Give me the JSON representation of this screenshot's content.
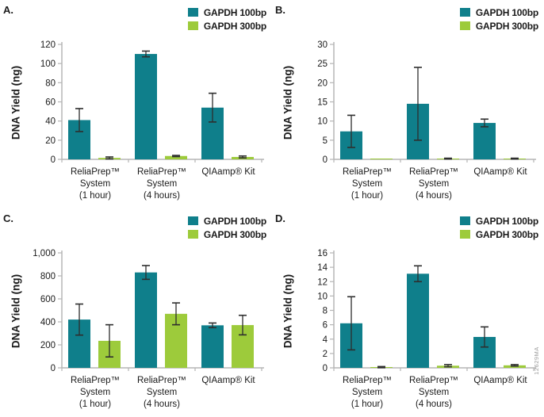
{
  "watermark": "12629MA",
  "colors": {
    "series1": "#0f7f8b",
    "series2": "#9dcb3b",
    "axis": "#b5b5b5",
    "error": "#2e2e2e",
    "text": "#1a1a1a"
  },
  "categories_lines": [
    [
      "ReliaPrep™",
      "System",
      "(1 hour)"
    ],
    [
      "ReliaPrep™",
      "System",
      "(4 hours)"
    ],
    [
      "QIAamp® Kit"
    ]
  ],
  "chart_data": [
    {
      "panel": "A.",
      "type": "bar",
      "title": "",
      "xlabel": "",
      "ylabel": "DNA Yield (ng)",
      "ylim": [
        0,
        120
      ],
      "yticks": [
        0,
        20,
        40,
        60,
        80,
        100,
        120
      ],
      "grid": false,
      "legend_position": "top-right",
      "categories": [
        "ReliaPrep™ System (1 hour)",
        "ReliaPrep™ System (4 hours)",
        "QIAamp® Kit"
      ],
      "series": [
        {
          "name": "GAPDH 100bp",
          "values": [
            41,
            110,
            54
          ],
          "errors": [
            12,
            3,
            15
          ]
        },
        {
          "name": "GAPDH 300bp",
          "values": [
            1.5,
            3.5,
            2.5
          ],
          "errors": [
            1,
            0.6,
            1
          ]
        }
      ]
    },
    {
      "panel": "B.",
      "type": "bar",
      "title": "",
      "xlabel": "",
      "ylabel": "DNA Yield (ng)",
      "ylim": [
        0,
        30
      ],
      "yticks": [
        0,
        5,
        10,
        15,
        20,
        25,
        30
      ],
      "grid": false,
      "legend_position": "top-right",
      "categories": [
        "ReliaPrep™ System (1 hour)",
        "ReliaPrep™ System (4 hours)",
        "QIAamp® Kit"
      ],
      "series": [
        {
          "name": "GAPDH 100bp",
          "values": [
            7.3,
            14.5,
            9.5
          ],
          "errors": [
            4.2,
            9.5,
            1
          ]
        },
        {
          "name": "GAPDH 300bp",
          "values": [
            0.1,
            0.2,
            0.2
          ],
          "errors": [
            0,
            0.1,
            0.1
          ]
        }
      ]
    },
    {
      "panel": "C.",
      "type": "bar",
      "title": "",
      "xlabel": "",
      "ylabel": "DNA Yield (ng)",
      "ylim": [
        0,
        1000
      ],
      "yticks": [
        0,
        200,
        400,
        600,
        800,
        1000
      ],
      "grid": false,
      "legend_position": "top-right",
      "categories": [
        "ReliaPrep™ System (1 hour)",
        "ReliaPrep™ System (4 hours)",
        "QIAamp® Kit"
      ],
      "series": [
        {
          "name": "GAPDH 100bp",
          "values": [
            420,
            830,
            370
          ],
          "errors": [
            135,
            60,
            20
          ]
        },
        {
          "name": "GAPDH 300bp",
          "values": [
            235,
            470,
            372
          ],
          "errors": [
            140,
            95,
            85
          ]
        }
      ]
    },
    {
      "panel": "D.",
      "type": "bar",
      "title": "",
      "xlabel": "",
      "ylabel": "DNA Yield (ng)",
      "ylim": [
        0,
        16
      ],
      "yticks": [
        0,
        2,
        4,
        6,
        8,
        10,
        12,
        14,
        16
      ],
      "grid": false,
      "legend_position": "top-right",
      "categories": [
        "ReliaPrep™ System (1 hour)",
        "ReliaPrep™ System (4 hours)",
        "QIAamp® Kit"
      ],
      "series": [
        {
          "name": "GAPDH 100bp",
          "values": [
            6.2,
            13.1,
            4.3
          ],
          "errors": [
            3.7,
            1.1,
            1.4
          ]
        },
        {
          "name": "GAPDH 300bp",
          "values": [
            0.1,
            0.3,
            0.35
          ],
          "errors": [
            0.08,
            0.15,
            0.1
          ]
        }
      ]
    }
  ]
}
